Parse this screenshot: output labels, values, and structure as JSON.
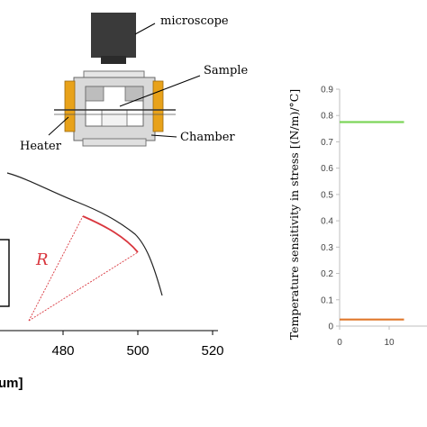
{
  "diagram": {
    "labels": {
      "microscope": "microscope",
      "sample": "Sample",
      "heater": "Heater",
      "chamber": "Chamber",
      "radius": "R"
    },
    "colors": {
      "heater": "#e8a21a",
      "chamber": "#d9d9d9",
      "microscope": "#3a3a3a",
      "radius_lines": "#d9363e"
    }
  },
  "profile_axis": {
    "x_ticks": [
      "480",
      "500",
      "520"
    ],
    "x_label_fragment": "um]"
  },
  "chart_data": {
    "type": "line",
    "ylabel": "Temperature sensitivity in stress [(N/m)/°C]",
    "ylim": [
      0,
      0.9
    ],
    "y_ticks": [
      "0",
      "0.1",
      "0.2",
      "0.3",
      "0.4",
      "0.5",
      "0.6",
      "0.7",
      "0.8",
      "0.9"
    ],
    "x_ticks": [
      "0",
      "10"
    ],
    "xlim_visible": [
      0,
      13
    ],
    "series": [
      {
        "color": "#7dd55a",
        "x": [
          0,
          13
        ],
        "y": [
          0.775,
          0.775
        ]
      },
      {
        "color": "#e0782c",
        "x": [
          0,
          13
        ],
        "y": [
          0.025,
          0.025
        ]
      }
    ]
  }
}
